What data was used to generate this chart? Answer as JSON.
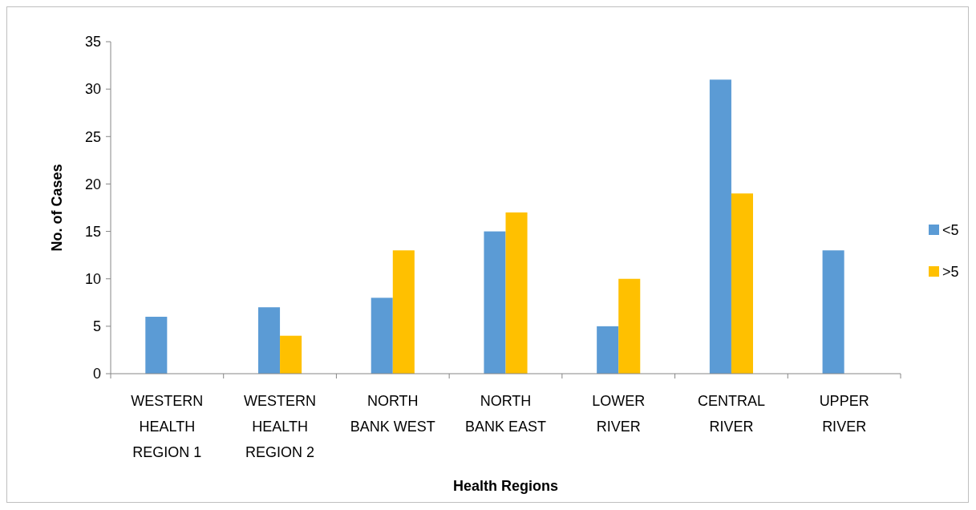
{
  "chart_data": {
    "type": "bar",
    "xlabel": "Health Regions",
    "ylabel": "No. of Cases",
    "categories": [
      "WESTERN HEALTH REGION 1",
      "WESTERN HEALTH REGION 2",
      "NORTH BANK WEST",
      "NORTH BANK EAST",
      "LOWER RIVER",
      "CENTRAL RIVER",
      "UPPER RIVER"
    ],
    "series": [
      {
        "name": "<5",
        "color": "#5b9bd5",
        "values": [
          6,
          7,
          8,
          15,
          5,
          31,
          13
        ]
      },
      {
        "name": ">5",
        "color": "#ffc000",
        "values": [
          0,
          4,
          13,
          17,
          10,
          19,
          0
        ]
      }
    ],
    "ylim": [
      0,
      35
    ],
    "yticks": [
      0,
      5,
      10,
      15,
      20,
      25,
      30,
      35
    ],
    "grid": false,
    "legend": "right"
  }
}
